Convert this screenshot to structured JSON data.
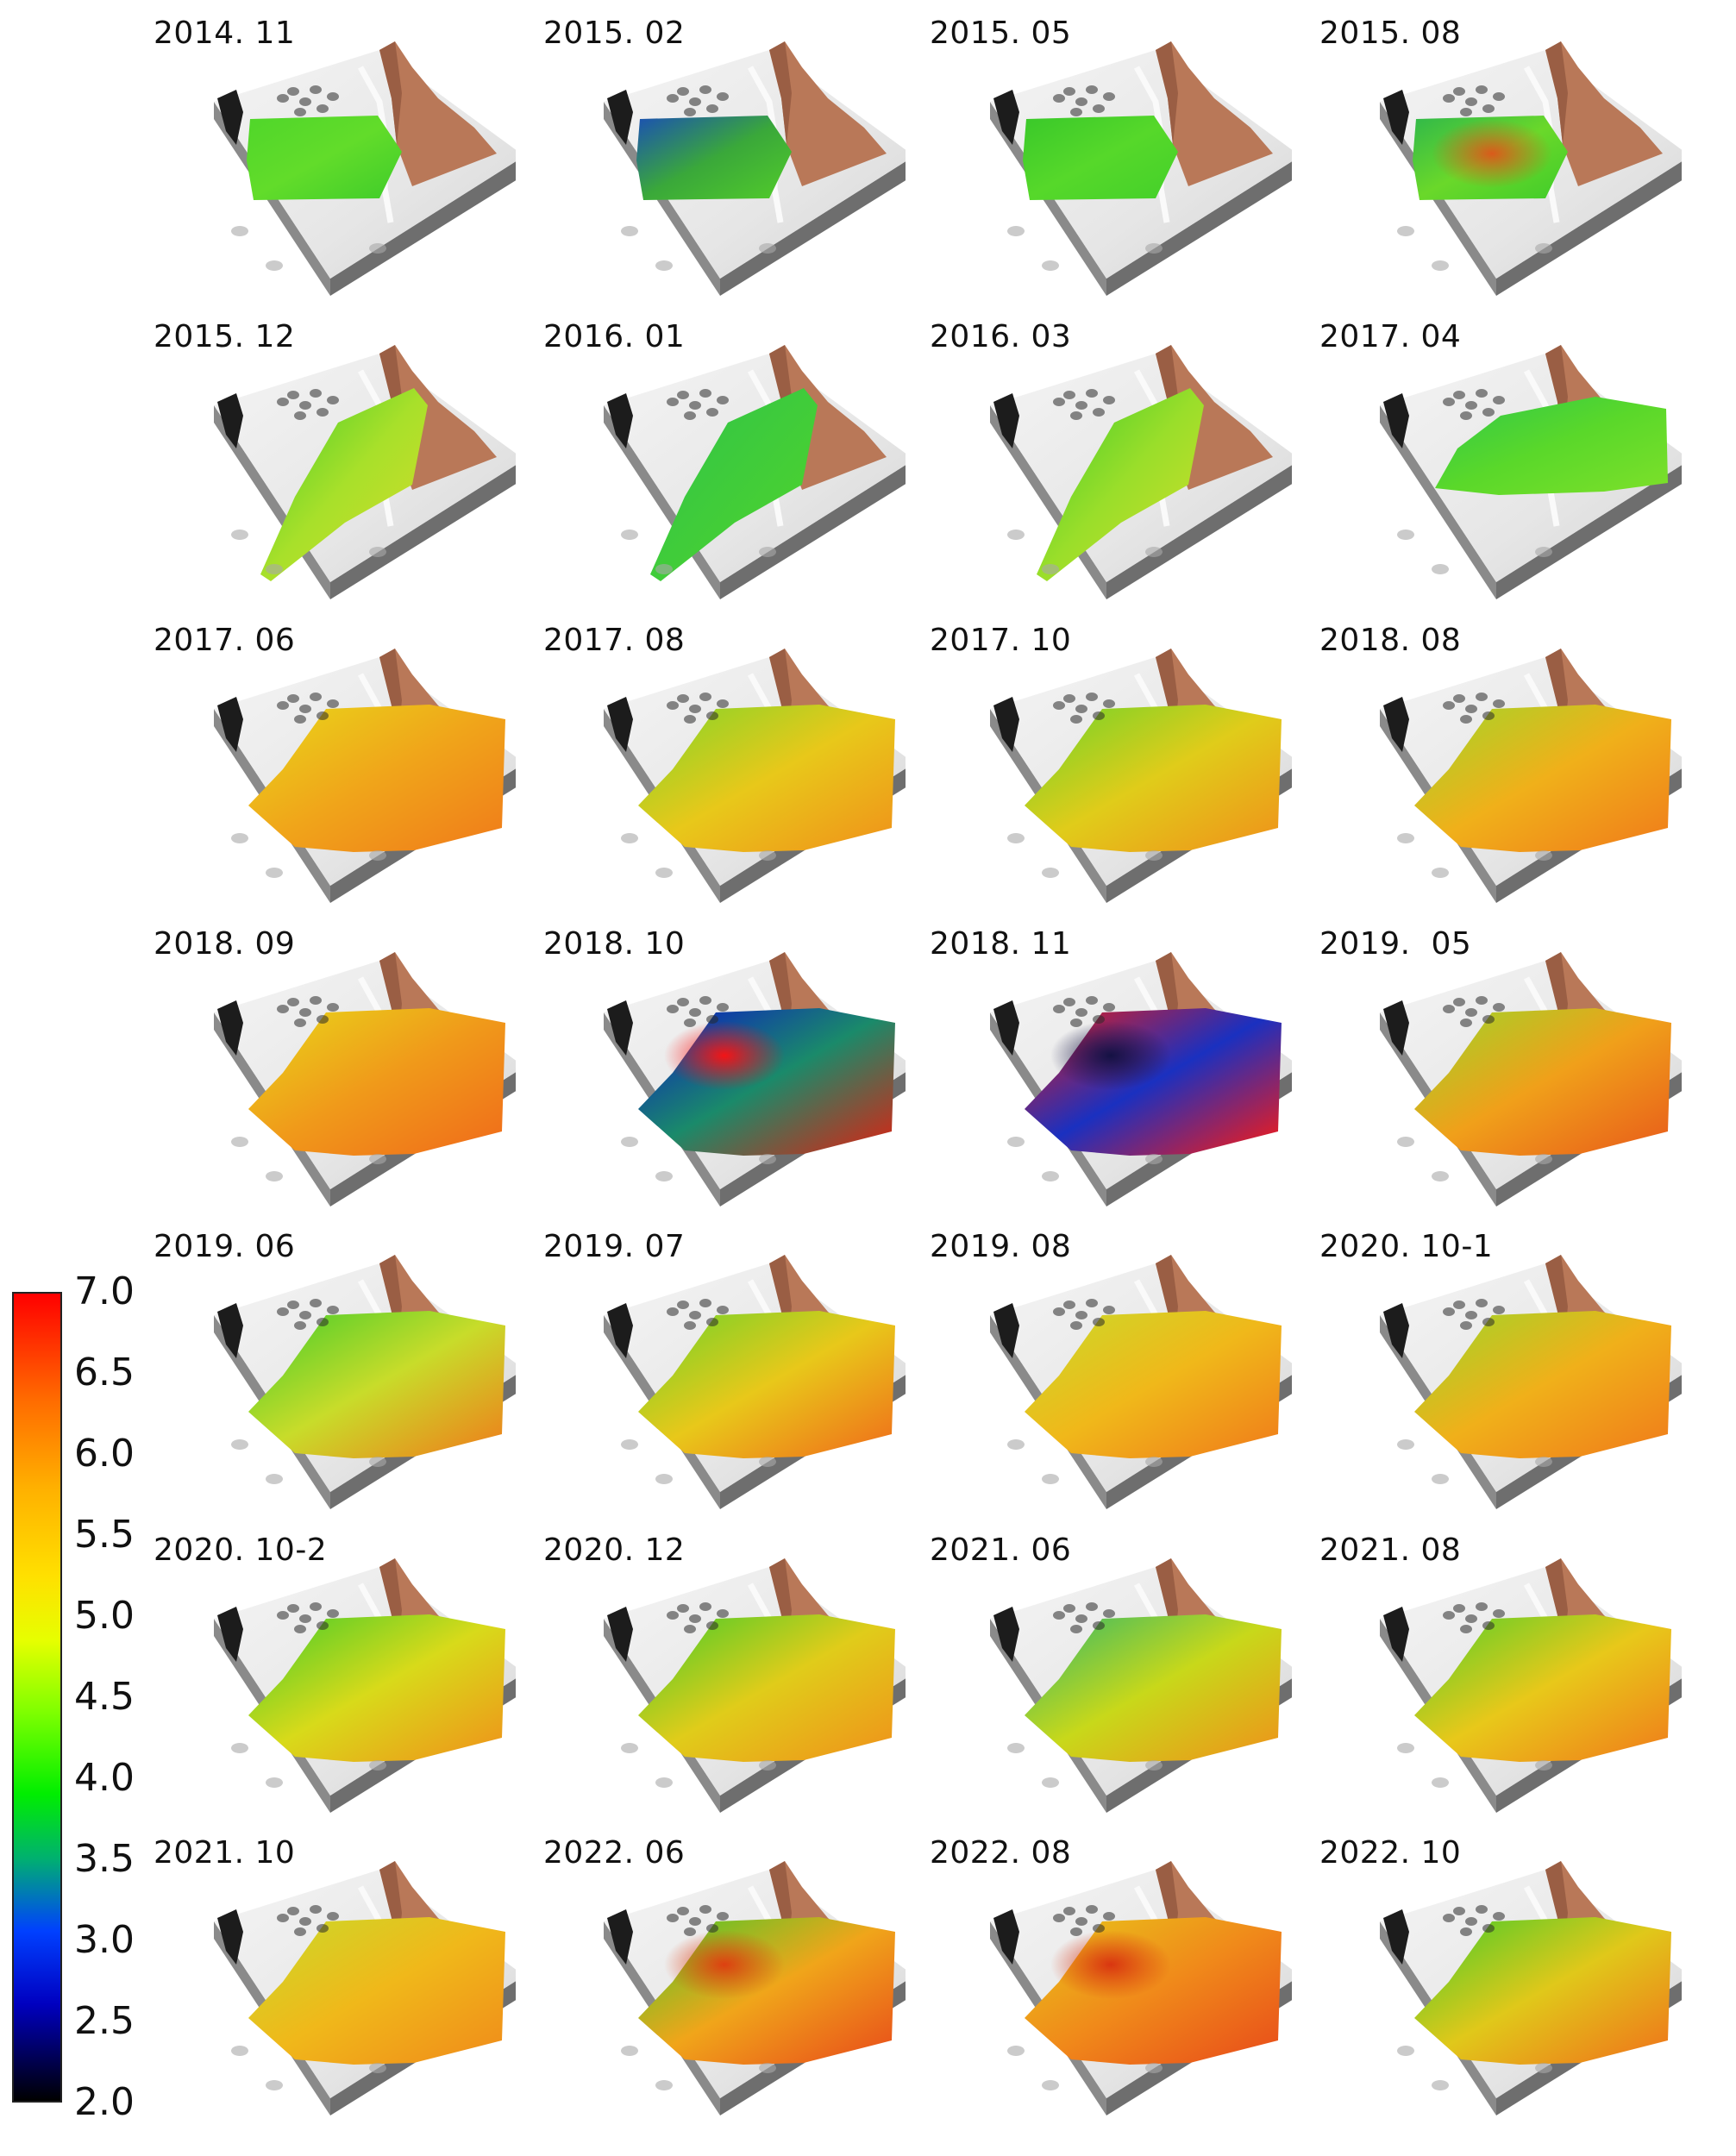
{
  "panels": [
    {
      "label": "2014. 11",
      "mode": "small",
      "c": [
        "#4fd62a",
        "#62dc2a",
        "#3fcc2a"
      ],
      "hot": null
    },
    {
      "label": "2015. 02",
      "mode": "small",
      "c": [
        "#1a4fb5",
        "#3aa83a",
        "#52cc2a"
      ],
      "hot": null
    },
    {
      "label": "2015. 05",
      "mode": "small",
      "c": [
        "#39c82a",
        "#56d82a",
        "#44d02a"
      ],
      "hot": null
    },
    {
      "label": "2015. 08",
      "mode": "small",
      "c": [
        "#2fb84a",
        "#6ad82a",
        "#3fcc2a"
      ],
      "hot": "#e0541a"
    },
    {
      "label": "2015. 12",
      "mode": "tri",
      "c": [
        "#3fcc2a",
        "#a8e02a",
        "#d8dc2a"
      ],
      "hot": null
    },
    {
      "label": "2016. 01",
      "mode": "tri",
      "c": [
        "#2fc24a",
        "#40cc3a",
        "#52d42a"
      ],
      "hot": null
    },
    {
      "label": "2016. 03",
      "mode": "tri",
      "c": [
        "#3acb2a",
        "#9ade2a",
        "#d6de2a"
      ],
      "hot": null
    },
    {
      "label": "2017. 04",
      "mode": "wide",
      "c": [
        "#2fc84a",
        "#5ad82a",
        "#7ee02a"
      ],
      "hot": null
    },
    {
      "label": "2017. 06",
      "mode": "full",
      "c": [
        "#e8d81a",
        "#f0a51a",
        "#f07a1a"
      ],
      "hot": null
    },
    {
      "label": "2017. 08",
      "mode": "full",
      "c": [
        "#7ed62a",
        "#e8c81a",
        "#f0901a"
      ],
      "hot": null
    },
    {
      "label": "2017. 10",
      "mode": "full",
      "c": [
        "#6ad42a",
        "#e0cc1a",
        "#f0901a"
      ],
      "hot": null
    },
    {
      "label": "2018. 08",
      "mode": "full",
      "c": [
        "#9ed82a",
        "#f0b01a",
        "#f07a1a"
      ],
      "hot": null
    },
    {
      "label": "2018. 09",
      "mode": "full",
      "c": [
        "#e8d81a",
        "#f09a1a",
        "#f06a1a"
      ],
      "hot": null
    },
    {
      "label": "2018. 10",
      "mode": "full",
      "c": [
        "#0a14c8",
        "#1a8a6a",
        "#e02010"
      ],
      "hot": "#ff1010"
    },
    {
      "label": "2018. 11",
      "mode": "full",
      "c": [
        "#f01a10",
        "#1a30c0",
        "#ff1a10"
      ],
      "hot": "#101040"
    },
    {
      "label": "2019.  05",
      "mode": "full",
      "c": [
        "#9ad82a",
        "#f0a01a",
        "#e85a1a"
      ],
      "hot": null
    },
    {
      "label": "2019. 06",
      "mode": "full",
      "c": [
        "#3fcc2a",
        "#c8dc2a",
        "#f07a1a"
      ],
      "hot": null
    },
    {
      "label": "2019. 07",
      "mode": "full",
      "c": [
        "#6ad42a",
        "#e8c81a",
        "#f06a1a"
      ],
      "hot": null
    },
    {
      "label": "2019. 08",
      "mode": "full",
      "c": [
        "#c8dc2a",
        "#f0b81a",
        "#f07a1a"
      ],
      "hot": null
    },
    {
      "label": "2020. 10-1",
      "mode": "full",
      "c": [
        "#9ad82a",
        "#f0b01a",
        "#f07a1a"
      ],
      "hot": null
    },
    {
      "label": "2020. 10-2",
      "mode": "full",
      "c": [
        "#3fcc2a",
        "#d8da1a",
        "#f0901a"
      ],
      "hot": null
    },
    {
      "label": "2020. 12",
      "mode": "full",
      "c": [
        "#3fcc2a",
        "#e0cc1a",
        "#f0901a"
      ],
      "hot": null
    },
    {
      "label": "2021. 06",
      "mode": "full",
      "c": [
        "#2fb86a",
        "#c8d81a",
        "#f0901a"
      ],
      "hot": null
    },
    {
      "label": "2021. 08",
      "mode": "full",
      "c": [
        "#4fd02a",
        "#e8c81a",
        "#f07a1a"
      ],
      "hot": null
    },
    {
      "label": "2021. 10",
      "mode": "full",
      "c": [
        "#c8dc2a",
        "#f0b81a",
        "#f08a1a"
      ],
      "hot": null
    },
    {
      "label": "2022. 06",
      "mode": "full",
      "c": [
        "#3fcc2a",
        "#f0a51a",
        "#e84a1a"
      ],
      "hot": "#e03a10"
    },
    {
      "label": "2022. 08",
      "mode": "full",
      "c": [
        "#e8c81a",
        "#f08a1a",
        "#e84a1a"
      ],
      "hot": "#d83010"
    },
    {
      "label": "2022. 10",
      "mode": "full",
      "c": [
        "#3fcc2a",
        "#e0c81a",
        "#f0701a"
      ],
      "hot": null
    }
  ],
  "colorbar": {
    "ticks": [
      "7.0",
      "6.5",
      "6.0",
      "5.5",
      "5.0",
      "4.5",
      "4.0",
      "3.5",
      "3.0",
      "2.5",
      "2.0"
    ],
    "max": 7.0,
    "min": 2.0
  }
}
